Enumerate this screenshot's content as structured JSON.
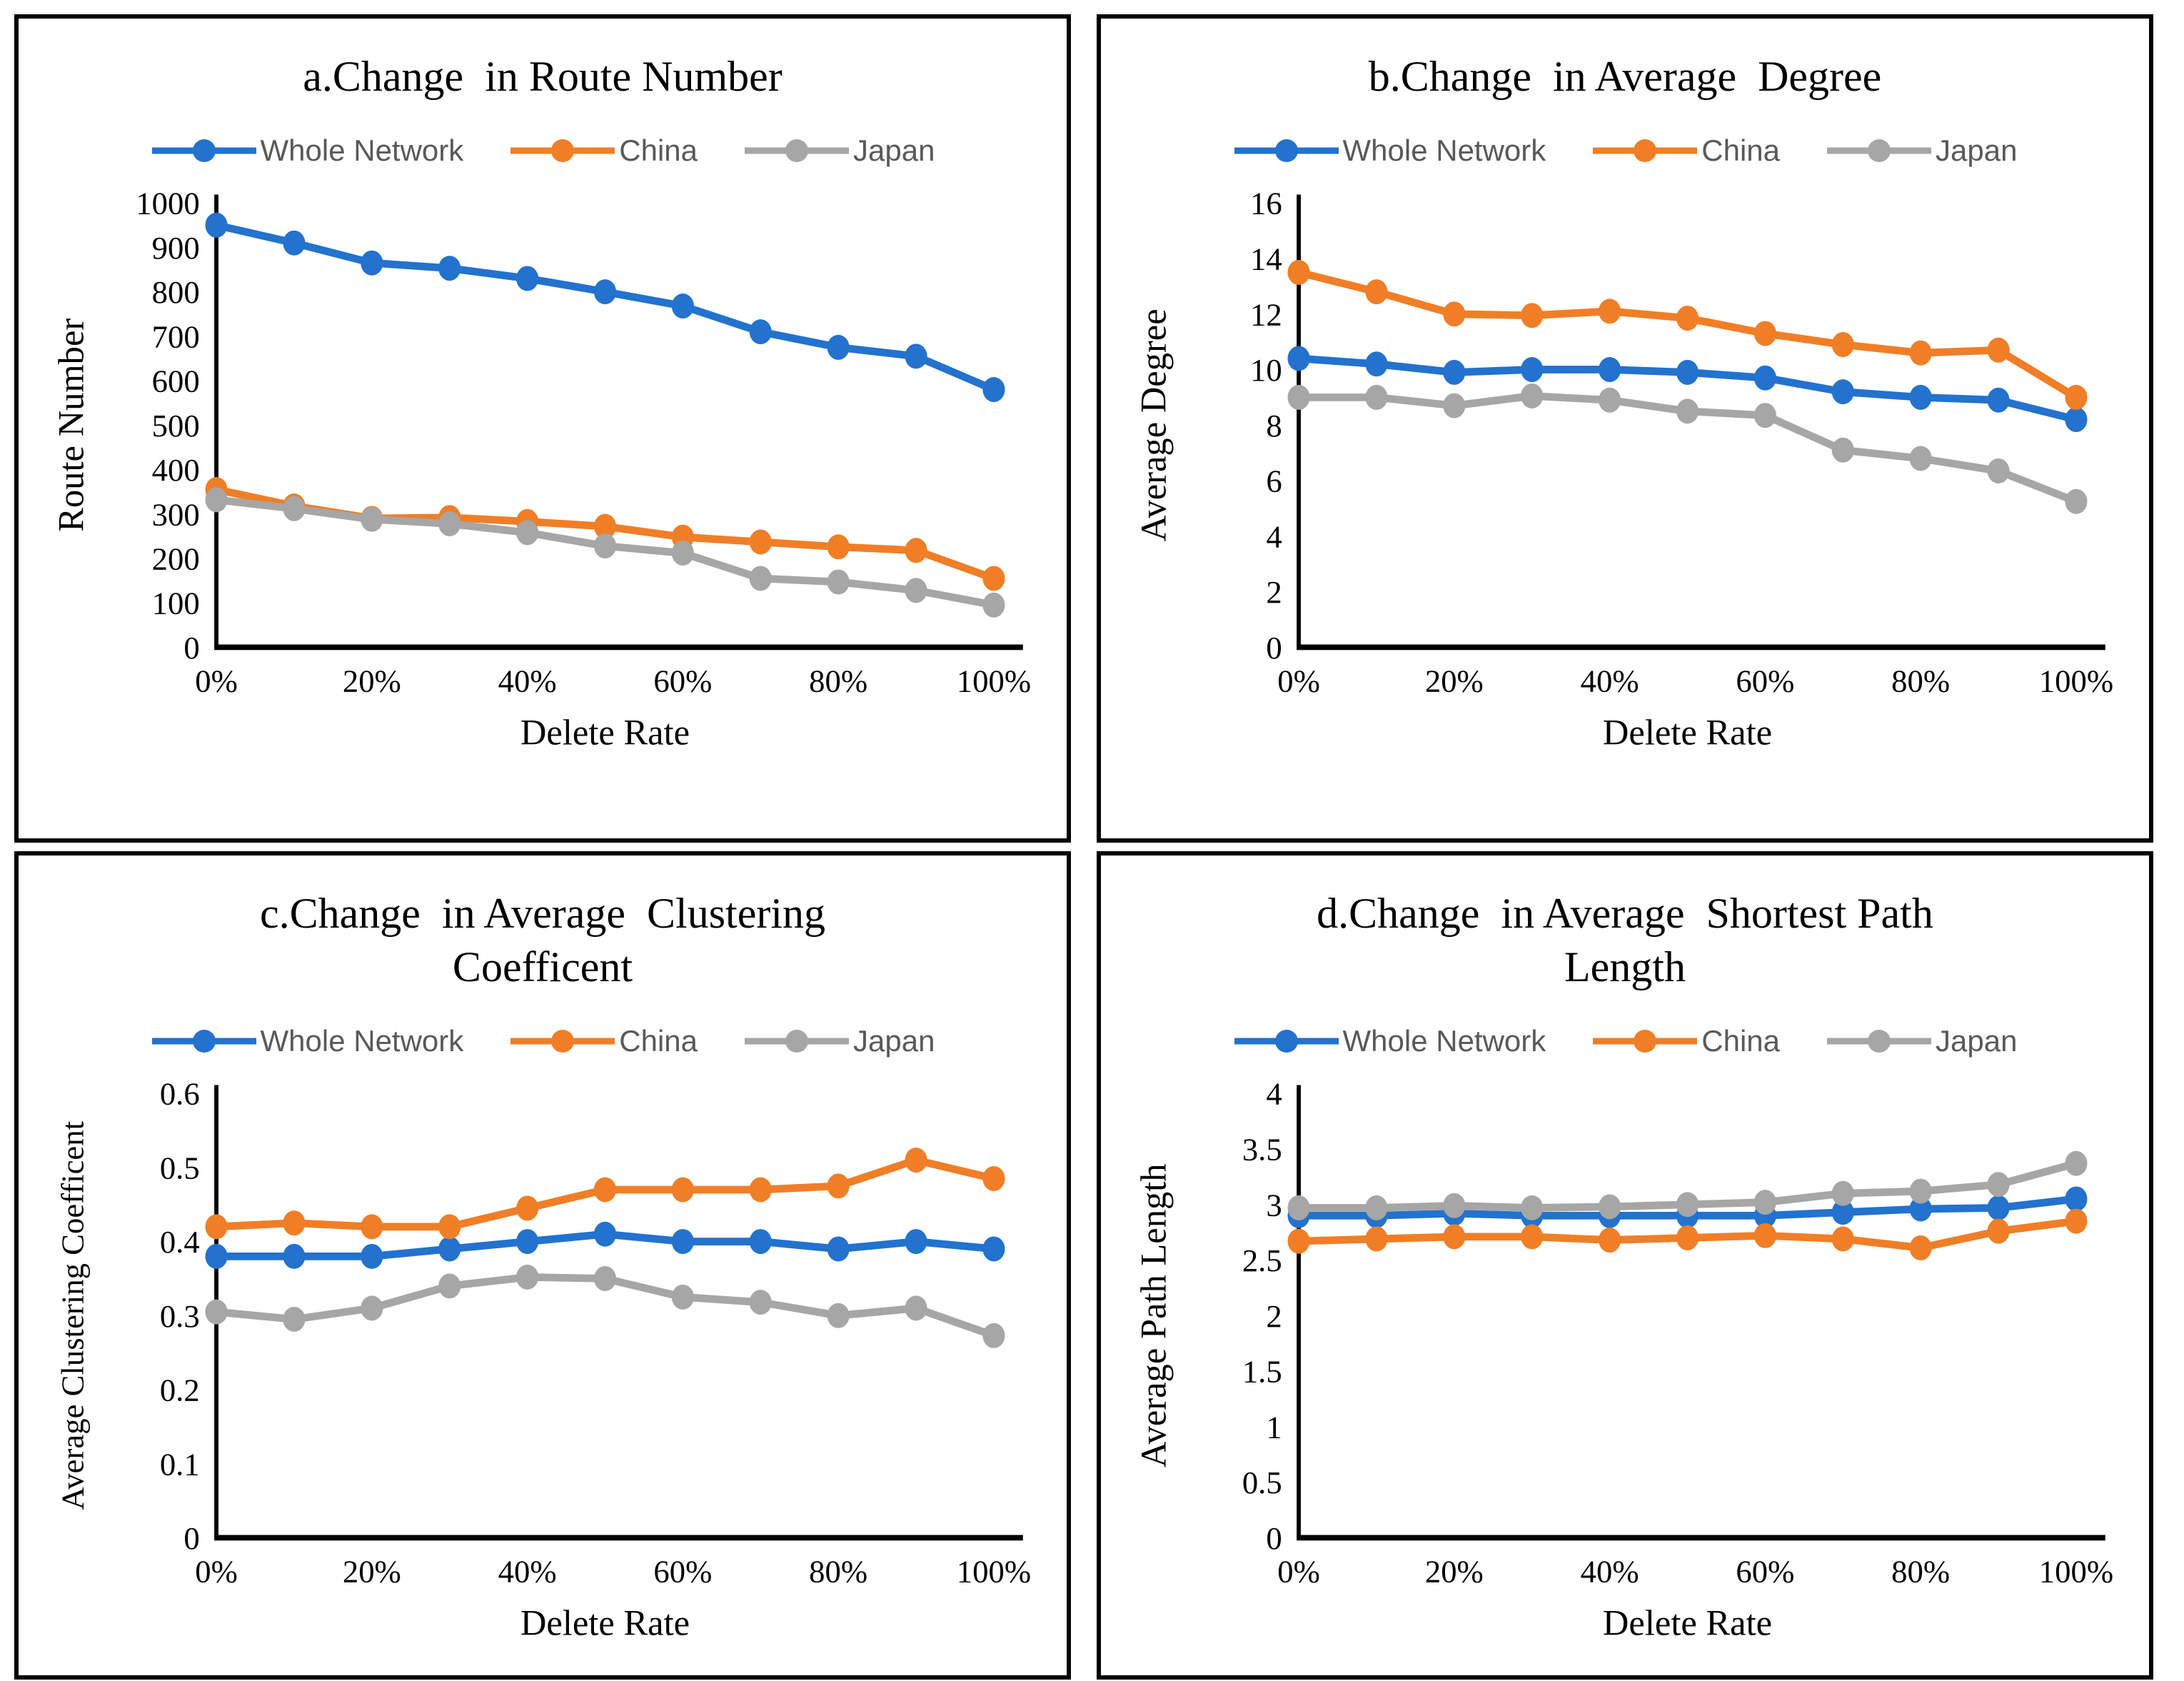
{
  "page": {
    "background": "#ffffff",
    "panel_border_color": "#000000",
    "legend_text_color": "#595959",
    "axis_color": "#000000"
  },
  "chart_data": [
    {
      "type": "line",
      "title": "a.Change  in Route Number",
      "xlabel": "Delete  Rate",
      "ylabel": "Route Number",
      "ylim": [
        0,
        1000
      ],
      "grid": false,
      "legend_position": "top",
      "ytick_values": [
        0,
        100,
        200,
        300,
        400,
        500,
        600,
        700,
        800,
        900,
        1000
      ],
      "ytick_labels": [
        "0",
        "100",
        "200",
        "300",
        "400",
        "500",
        "600",
        "700",
        "800",
        "900",
        "1000"
      ],
      "x_pct": [
        0,
        10,
        20,
        30,
        40,
        50,
        60,
        70,
        80,
        90,
        100
      ],
      "xtick_pcts": [
        0,
        20,
        40,
        60,
        80,
        100
      ],
      "xtick_labels": [
        "0%",
        "20%",
        "40%",
        "60%",
        "80%",
        "100%"
      ],
      "series": [
        {
          "name": "Whole Network",
          "color": "#2272CE",
          "values": [
            950,
            910,
            865,
            853,
            830,
            800,
            768,
            710,
            675,
            655,
            580
          ]
        },
        {
          "name": "China",
          "color": "#F07E26",
          "values": [
            355,
            318,
            290,
            292,
            283,
            272,
            248,
            237,
            226,
            218,
            155
          ]
        },
        {
          "name": "Japan",
          "color": "#A6A6A6",
          "values": [
            332,
            312,
            288,
            278,
            258,
            228,
            212,
            155,
            147,
            128,
            95
          ]
        }
      ]
    },
    {
      "type": "line",
      "title": "b.Change  in Average  Degree",
      "xlabel": "Delete Rate",
      "ylabel": "Average Degree",
      "ylim": [
        0,
        16
      ],
      "grid": false,
      "legend_position": "top",
      "ytick_values": [
        0,
        2,
        4,
        6,
        8,
        10,
        12,
        14,
        16
      ],
      "ytick_labels": [
        "0",
        "2",
        "4",
        "6",
        "8",
        "10",
        "12",
        "14",
        "16"
      ],
      "x_pct": [
        0,
        10,
        20,
        30,
        40,
        50,
        60,
        70,
        80,
        90,
        100
      ],
      "xtick_pcts": [
        0,
        20,
        40,
        60,
        80,
        100
      ],
      "xtick_labels": [
        "0%",
        "20%",
        "40%",
        "60%",
        "80%",
        "100%"
      ],
      "series": [
        {
          "name": "Whole Network",
          "color": "#2272CE",
          "values": [
            10.4,
            10.2,
            9.9,
            10.0,
            10.0,
            9.9,
            9.7,
            9.2,
            9.0,
            8.9,
            8.2
          ]
        },
        {
          "name": "China",
          "color": "#F07E26",
          "values": [
            13.5,
            12.8,
            12.0,
            11.95,
            12.1,
            11.85,
            11.3,
            10.9,
            10.6,
            10.7,
            9.0
          ]
        },
        {
          "name": "Japan",
          "color": "#A6A6A6",
          "values": [
            9.0,
            9.0,
            8.7,
            9.05,
            8.9,
            8.5,
            8.35,
            7.1,
            6.8,
            6.35,
            5.25
          ]
        }
      ]
    },
    {
      "type": "line",
      "title": "c.Change  in Average  Clustering\nCoefficent",
      "xlabel": "Delete Rate",
      "ylabel": "Average  Clustering  Coefficent",
      "ylim": [
        0,
        0.6
      ],
      "grid": false,
      "legend_position": "top",
      "ytick_values": [
        0,
        0.1,
        0.2,
        0.3,
        0.4,
        0.5,
        0.6
      ],
      "ytick_labels": [
        "0",
        "0.1",
        "0.2",
        "0.3",
        "0.4",
        "0.5",
        "0.6"
      ],
      "x_pct": [
        0,
        10,
        20,
        30,
        40,
        50,
        60,
        70,
        80,
        90,
        100
      ],
      "xtick_pcts": [
        0,
        20,
        40,
        60,
        80,
        100
      ],
      "xtick_labels": [
        "0%",
        "20%",
        "40%",
        "60%",
        "80%",
        "100%"
      ],
      "series": [
        {
          "name": "Whole Network",
          "color": "#2272CE",
          "values": [
            0.38,
            0.38,
            0.38,
            0.39,
            0.4,
            0.41,
            0.4,
            0.4,
            0.39,
            0.4,
            0.39
          ]
        },
        {
          "name": "China",
          "color": "#F07E26",
          "values": [
            0.42,
            0.425,
            0.42,
            0.42,
            0.445,
            0.47,
            0.47,
            0.47,
            0.475,
            0.51,
            0.485
          ]
        },
        {
          "name": "Japan",
          "color": "#A6A6A6",
          "values": [
            0.305,
            0.295,
            0.31,
            0.34,
            0.352,
            0.35,
            0.325,
            0.318,
            0.3,
            0.31,
            0.273
          ]
        }
      ]
    },
    {
      "type": "line",
      "title": "d.Change  in Average  Shortest Path\nLength",
      "xlabel": "Delete Rate",
      "ylabel": "Average  Path Length",
      "ylim": [
        0,
        4
      ],
      "grid": false,
      "legend_position": "top",
      "ytick_values": [
        0,
        0.5,
        1,
        1.5,
        2,
        2.5,
        3,
        3.5,
        4
      ],
      "ytick_labels": [
        "0",
        "0.5",
        "1",
        "1.5",
        "2",
        "2.5",
        "3",
        "3.5",
        "4"
      ],
      "x_pct": [
        0,
        10,
        20,
        30,
        40,
        50,
        60,
        70,
        80,
        90,
        100
      ],
      "xtick_pcts": [
        0,
        20,
        40,
        60,
        80,
        100
      ],
      "xtick_labels": [
        "0%",
        "20%",
        "40%",
        "60%",
        "80%",
        "100%"
      ],
      "series": [
        {
          "name": "Whole Network",
          "color": "#2272CE",
          "values": [
            2.9,
            2.9,
            2.92,
            2.9,
            2.9,
            2.9,
            2.9,
            2.93,
            2.96,
            2.97,
            3.05
          ]
        },
        {
          "name": "China",
          "color": "#F07E26",
          "values": [
            2.67,
            2.69,
            2.71,
            2.71,
            2.68,
            2.7,
            2.72,
            2.69,
            2.61,
            2.76,
            2.85
          ]
        },
        {
          "name": "Japan",
          "color": "#A6A6A6",
          "values": [
            2.97,
            2.97,
            2.99,
            2.97,
            2.98,
            3.0,
            3.02,
            3.1,
            3.12,
            3.18,
            3.37
          ]
        }
      ]
    }
  ]
}
